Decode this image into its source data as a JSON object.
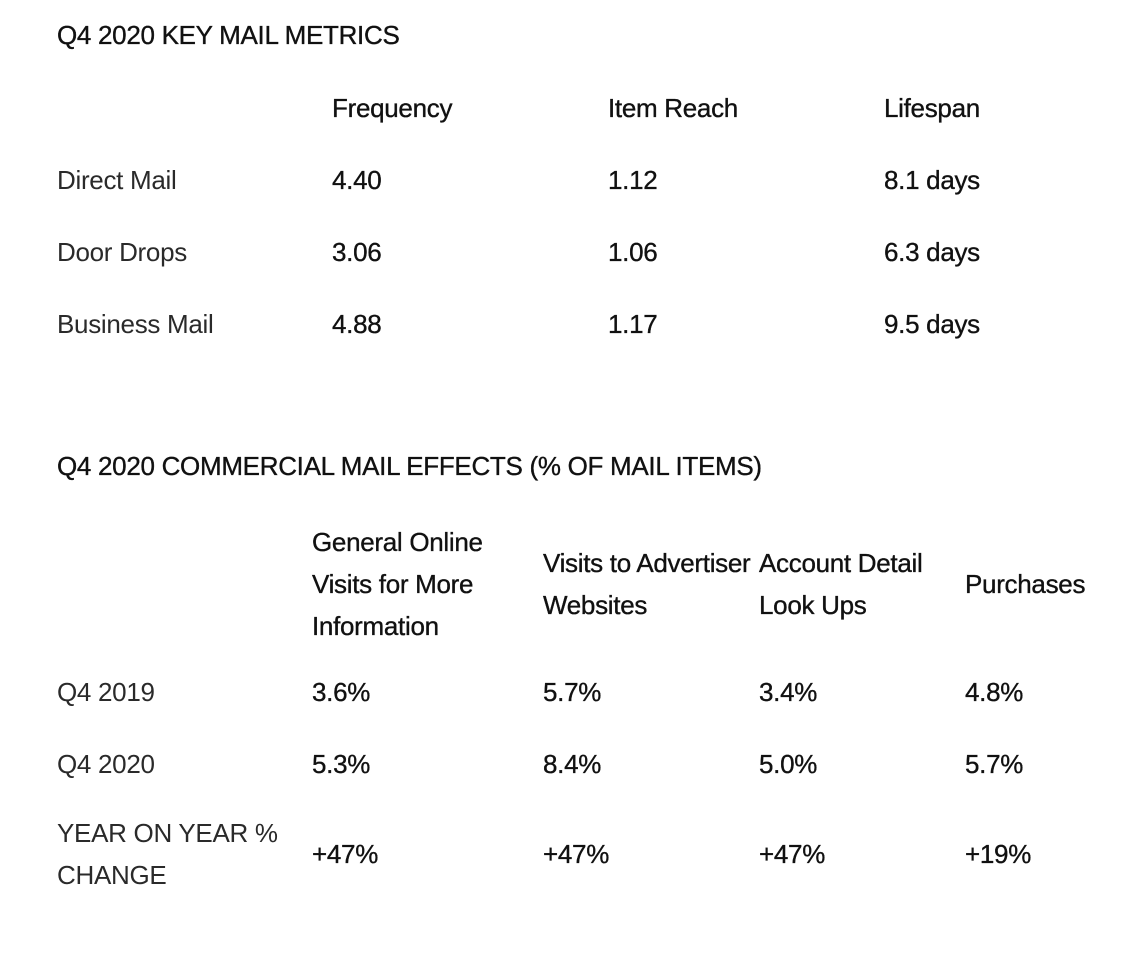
{
  "metrics": {
    "title": "Q4 2020 KEY MAIL METRICS",
    "columns": [
      "Frequency",
      "Item Reach",
      "Lifespan"
    ],
    "rows": [
      {
        "label": "Direct Mail",
        "values": [
          "4.40",
          "1.12",
          "8.1 days"
        ]
      },
      {
        "label": "Door Drops",
        "values": [
          "3.06",
          "1.06",
          "6.3 days"
        ]
      },
      {
        "label": "Business Mail",
        "values": [
          "4.88",
          "1.17",
          "9.5 days"
        ]
      }
    ]
  },
  "effects": {
    "title": "Q4 2020 COMMERCIAL MAIL EFFECTS (% OF MAIL ITEMS)",
    "columns": [
      "General Online Visits for More Information",
      "Visits to Advertiser Websites",
      "Account Detail Look Ups",
      "Purchases"
    ],
    "rows": [
      {
        "label": "Q4 2019",
        "values": [
          "3.6%",
          "5.7%",
          "3.4%",
          "4.8%"
        ]
      },
      {
        "label": "Q4 2020",
        "values": [
          "5.3%",
          "8.4%",
          "5.0%",
          "5.7%"
        ]
      },
      {
        "label": "YEAR ON YEAR % CHANGE",
        "values": [
          "+47%",
          "+47%",
          "+47%",
          "+19%"
        ]
      }
    ]
  }
}
